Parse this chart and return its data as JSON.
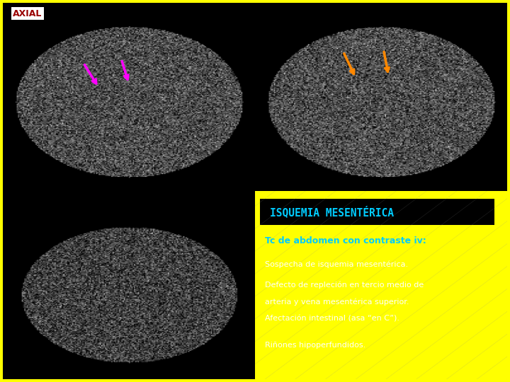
{
  "background_color": "#ffff00",
  "panel_bg": "#000000",
  "right_panel_bg": "#777777",
  "title_box_bg": "#000000",
  "title_text": "ISQUEMIA MESENTÉRICA",
  "title_color": "#00ccff",
  "subtitle_text": "Tc de abdomen con contraste iv:",
  "subtitle_color": "#00ccff",
  "body_color": "#ffffff",
  "line1": "Sospecha de isquemia mesentérica.",
  "line2a": "Defecto de repleción en tercio medio de",
  "line2b": "arteria y vena mesentérica superior.",
  "line2c": "Afectación intestinal (asa “en C”).",
  "line3": "Riñones hipoperfundidos.",
  "axial_label": "AXIAL",
  "axial_label_color": "#990000",
  "axial_label_bg": "#ffffff",
  "arrow_magenta": "#ff00ff",
  "arrow_orange": "#ff8800",
  "border_color": "#ffff00",
  "border_width": 4
}
